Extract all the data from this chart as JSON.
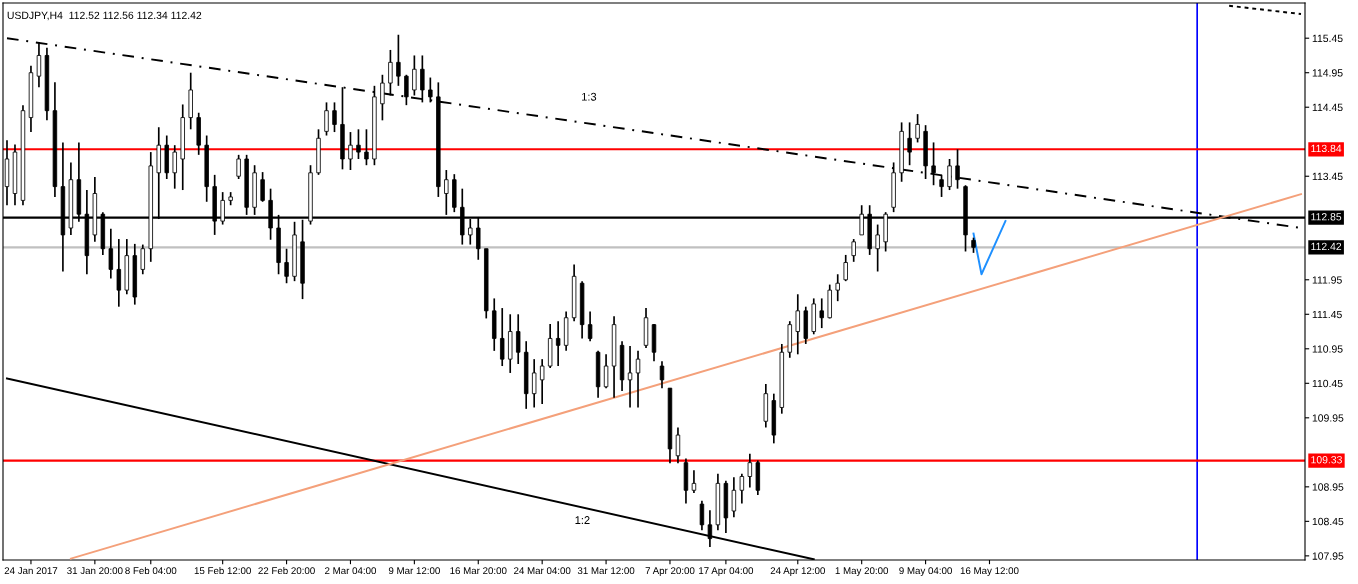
{
  "chart_data": {
    "type": "candlestick",
    "title": "USDJPY,H4  112.52 112.56 112.34 112.42",
    "categories": [
      null,
      null,
      null,
      "24 Jan 2017",
      null,
      null,
      null,
      null,
      null,
      null,
      null,
      "31 Jan 20:00",
      null,
      null,
      null,
      null,
      null,
      null,
      "8 Feb 04:00",
      null,
      null,
      null,
      null,
      null,
      null,
      null,
      null,
      "15 Feb 12:00",
      null,
      null,
      null,
      null,
      null,
      null,
      null,
      "22 Feb 20:00",
      null,
      null,
      null,
      null,
      null,
      null,
      null,
      "2 Mar 04:00",
      null,
      null,
      null,
      null,
      null,
      null,
      null,
      "9 Mar 12:00",
      null,
      null,
      null,
      null,
      null,
      null,
      null,
      "16 Mar 20:00",
      null,
      null,
      null,
      null,
      null,
      null,
      null,
      "24 Mar 04:00",
      null,
      null,
      null,
      null,
      null,
      null,
      null,
      "31 Mar 12:00",
      null,
      null,
      null,
      null,
      null,
      null,
      null,
      "7 Apr 20:00",
      null,
      null,
      null,
      null,
      null,
      null,
      "17 Apr 04:00",
      null,
      null,
      null,
      null,
      null,
      null,
      null,
      null,
      "24 Apr 12:00",
      null,
      null,
      null,
      null,
      null,
      null,
      null,
      "1 May 20:00",
      null,
      null,
      null,
      null,
      null,
      null,
      null,
      "9 May 04:00",
      null,
      null,
      null,
      null,
      null,
      null,
      null,
      "16 May 12:00",
      null,
      null,
      null,
      null,
      null,
      null,
      null,
      null,
      null,
      null,
      null,
      null,
      null,
      null,
      null,
      null,
      null,
      null,
      null,
      null,
      null,
      null,
      null,
      null,
      null,
      null,
      null,
      null,
      null,
      null,
      null,
      null,
      null,
      null,
      null,
      null,
      null,
      null,
      null
    ],
    "ohlc": [
      [
        113.3,
        113.97,
        113.03,
        113.7
      ],
      [
        113.2,
        113.91,
        113.03,
        113.8
      ],
      [
        113.1,
        114.48,
        113.03,
        114.4
      ],
      [
        114.3,
        115.05,
        114.09,
        114.95
      ],
      [
        114.9,
        115.38,
        114.74,
        115.2
      ],
      [
        115.2,
        115.31,
        114.26,
        114.4
      ],
      [
        114.4,
        114.81,
        113.15,
        113.3
      ],
      [
        113.3,
        113.94,
        112.07,
        112.6
      ],
      [
        112.7,
        113.65,
        112.6,
        113.4
      ],
      [
        113.4,
        113.94,
        112.79,
        112.9
      ],
      [
        112.9,
        113.25,
        112.03,
        112.3
      ],
      [
        112.6,
        113.44,
        112.5,
        113.2
      ],
      [
        112.9,
        112.93,
        112.31,
        112.4
      ],
      [
        112.4,
        112.69,
        111.97,
        112.1
      ],
      [
        112.1,
        112.54,
        111.56,
        111.8
      ],
      [
        111.8,
        112.54,
        111.74,
        112.3
      ],
      [
        112.3,
        112.47,
        111.59,
        111.7
      ],
      [
        112.1,
        112.46,
        112.03,
        112.4
      ],
      [
        112.4,
        113.8,
        112.21,
        113.6
      ],
      [
        113.5,
        114.16,
        112.83,
        113.9
      ],
      [
        113.9,
        114.04,
        113.41,
        113.5
      ],
      [
        113.5,
        113.9,
        113.27,
        113.8
      ],
      [
        113.7,
        114.49,
        113.25,
        114.3
      ],
      [
        114.3,
        114.95,
        114.13,
        114.7
      ],
      [
        114.3,
        114.37,
        113.76,
        113.9
      ],
      [
        113.9,
        114.04,
        113.08,
        113.3
      ],
      [
        113.3,
        113.47,
        112.6,
        112.8
      ],
      [
        112.8,
        113.22,
        112.75,
        113.1
      ],
      [
        113.1,
        113.22,
        113.03,
        113.15
      ],
      [
        113.45,
        113.76,
        113.41,
        113.7
      ],
      [
        113.7,
        113.76,
        112.89,
        113.0
      ],
      [
        113.0,
        113.61,
        112.89,
        113.5
      ],
      [
        113.4,
        113.51,
        113.08,
        113.1
      ],
      [
        113.1,
        113.27,
        112.53,
        112.7
      ],
      [
        112.7,
        112.89,
        112.03,
        112.2
      ],
      [
        112.2,
        112.4,
        111.9,
        112.0
      ],
      [
        112.0,
        112.79,
        111.93,
        112.6
      ],
      [
        112.5,
        112.82,
        111.67,
        111.9
      ],
      [
        112.8,
        113.61,
        112.75,
        113.5
      ],
      [
        113.5,
        114.13,
        113.47,
        114.0
      ],
      [
        114.1,
        114.52,
        114.04,
        114.4
      ],
      [
        114.4,
        114.52,
        114.09,
        114.2
      ],
      [
        114.2,
        114.74,
        113.55,
        113.7
      ],
      [
        113.7,
        114.09,
        113.54,
        113.9
      ],
      [
        113.9,
        114.13,
        113.7,
        113.8
      ],
      [
        113.8,
        114.13,
        113.61,
        113.7
      ],
      [
        113.7,
        114.76,
        113.61,
        114.6
      ],
      [
        114.5,
        114.92,
        114.26,
        114.8
      ],
      [
        114.8,
        115.28,
        114.62,
        115.1
      ],
      [
        115.1,
        115.5,
        114.76,
        114.9
      ],
      [
        114.9,
        114.92,
        114.48,
        114.6
      ],
      [
        114.7,
        115.2,
        114.62,
        115.0
      ],
      [
        115.0,
        115.2,
        114.52,
        114.7
      ],
      [
        114.7,
        114.88,
        114.52,
        114.6
      ],
      [
        114.6,
        114.81,
        113.15,
        113.3
      ],
      [
        113.2,
        113.54,
        112.89,
        113.4
      ],
      [
        113.4,
        113.48,
        112.93,
        113.0
      ],
      [
        113.0,
        113.27,
        112.46,
        112.6
      ],
      [
        112.6,
        112.83,
        112.46,
        112.7
      ],
      [
        112.7,
        112.86,
        112.24,
        112.4
      ],
      [
        112.4,
        112.4,
        111.39,
        111.5
      ],
      [
        111.5,
        111.68,
        110.92,
        111.1
      ],
      [
        111.1,
        111.54,
        110.7,
        110.8
      ],
      [
        110.8,
        111.45,
        110.6,
        111.2
      ],
      [
        111.2,
        111.45,
        110.73,
        110.9
      ],
      [
        110.9,
        111.06,
        110.08,
        110.3
      ],
      [
        110.3,
        110.8,
        110.1,
        110.6
      ],
      [
        110.5,
        110.8,
        110.15,
        110.7
      ],
      [
        110.7,
        111.31,
        110.67,
        111.1
      ],
      [
        111.1,
        111.35,
        110.7,
        111.0
      ],
      [
        111.0,
        111.49,
        110.92,
        111.4
      ],
      [
        111.4,
        112.17,
        111.35,
        112.0
      ],
      [
        111.9,
        111.93,
        111.1,
        111.3
      ],
      [
        111.3,
        111.49,
        111.06,
        111.1
      ],
      [
        110.9,
        110.92,
        110.24,
        110.4
      ],
      [
        110.4,
        110.87,
        110.38,
        110.7
      ],
      [
        110.7,
        111.42,
        110.24,
        111.3
      ],
      [
        111.0,
        111.06,
        110.34,
        110.5
      ],
      [
        110.5,
        110.99,
        110.1,
        110.6
      ],
      [
        110.6,
        110.92,
        110.1,
        110.8
      ],
      [
        111.0,
        111.54,
        110.96,
        111.4
      ],
      [
        111.3,
        111.31,
        110.77,
        110.9
      ],
      [
        110.7,
        110.77,
        110.38,
        110.5
      ],
      [
        110.38,
        110.38,
        109.29,
        109.5
      ],
      [
        109.4,
        109.81,
        109.29,
        109.7
      ],
      [
        109.3,
        109.36,
        108.71,
        108.9
      ],
      [
        108.9,
        109.19,
        108.86,
        109.0
      ],
      [
        108.7,
        108.75,
        108.32,
        108.4
      ],
      [
        108.4,
        108.61,
        108.08,
        108.2
      ],
      [
        108.4,
        109.14,
        108.32,
        109.0
      ],
      [
        109.0,
        109.04,
        108.28,
        108.5
      ],
      [
        108.6,
        109.09,
        108.51,
        108.9
      ],
      [
        108.9,
        109.14,
        108.71,
        109.1
      ],
      [
        109.1,
        109.43,
        108.94,
        109.3
      ],
      [
        109.3,
        109.33,
        108.83,
        108.9
      ],
      [
        109.9,
        110.44,
        109.81,
        110.3
      ],
      [
        110.2,
        110.3,
        109.58,
        109.7
      ],
      [
        110.1,
        111.02,
        110.01,
        110.9
      ],
      [
        110.9,
        111.35,
        110.82,
        111.3
      ],
      [
        111.2,
        111.74,
        110.87,
        111.5
      ],
      [
        111.5,
        111.56,
        111.02,
        111.1
      ],
      [
        111.2,
        111.68,
        111.16,
        111.6
      ],
      [
        111.5,
        111.68,
        111.25,
        111.4
      ],
      [
        111.4,
        111.88,
        111.39,
        111.8
      ],
      [
        111.8,
        112.03,
        111.64,
        111.9
      ],
      [
        111.95,
        112.31,
        111.93,
        112.2
      ],
      [
        112.3,
        112.54,
        112.21,
        112.5
      ],
      [
        112.6,
        113.03,
        112.6,
        112.9
      ],
      [
        112.9,
        113.03,
        112.31,
        112.4
      ],
      [
        112.4,
        112.75,
        112.07,
        112.6
      ],
      [
        112.5,
        112.93,
        112.36,
        112.9
      ],
      [
        113.0,
        113.65,
        112.93,
        113.5
      ],
      [
        113.5,
        114.23,
        113.37,
        114.1
      ],
      [
        114.0,
        114.23,
        113.61,
        113.8
      ],
      [
        114.0,
        114.35,
        113.94,
        114.2
      ],
      [
        114.1,
        114.19,
        113.41,
        113.6
      ],
      [
        113.6,
        113.94,
        113.32,
        113.5
      ],
      [
        113.4,
        113.47,
        113.15,
        113.3
      ],
      [
        113.3,
        113.7,
        113.25,
        113.6
      ],
      [
        113.6,
        113.84,
        113.27,
        113.4
      ],
      [
        113.3,
        113.32,
        112.36,
        112.6
      ],
      [
        112.52,
        112.56,
        112.34,
        112.42
      ],
      null,
      null,
      null,
      null,
      null,
      null,
      null,
      null,
      null,
      null,
      null,
      null,
      null,
      null,
      null,
      null,
      null,
      null,
      null,
      null,
      null,
      null,
      null,
      null,
      null,
      null,
      null,
      null,
      null,
      null,
      null,
      null,
      null,
      null,
      null,
      null,
      null,
      null,
      null,
      null,
      null
    ],
    "color": "#000000",
    "series": [
      {
        "type": "line",
        "values": [
          115.45,
          null,
          null,
          null,
          null,
          null,
          null,
          null,
          null,
          null,
          null,
          null,
          null,
          null,
          null,
          null,
          null,
          null,
          null,
          null,
          null,
          null,
          null,
          null,
          null,
          null,
          null,
          null,
          null,
          null,
          null,
          null,
          null,
          null,
          null,
          null,
          null,
          null,
          null,
          null,
          null,
          null,
          null,
          null,
          null,
          null,
          null,
          null,
          null,
          null,
          null,
          null,
          null,
          null,
          null,
          null,
          null,
          null,
          null,
          null,
          null,
          null,
          null,
          null,
          null,
          null,
          null,
          null,
          null,
          null,
          null,
          null,
          null,
          null,
          null,
          null,
          null,
          null,
          null,
          null,
          null,
          null,
          null,
          null,
          null,
          null,
          null,
          null,
          null,
          null,
          null,
          null,
          null,
          null,
          null,
          null,
          null,
          null,
          null,
          null,
          null,
          null,
          null,
          null,
          null,
          null,
          null,
          null,
          null,
          null,
          null,
          null,
          null,
          null,
          null,
          null,
          null,
          null,
          null,
          null,
          null,
          null,
          null,
          null,
          null,
          null,
          null,
          null,
          null,
          null,
          null,
          null,
          null,
          null,
          null,
          null,
          null,
          null,
          null,
          null,
          null,
          null,
          null,
          null,
          null,
          null,
          null,
          null,
          null,
          null,
          null,
          null,
          null,
          null,
          null,
          null,
          null,
          null,
          null,
          null,
          null,
          null,
          112.7
        ],
        "color": "#000000",
        "line_style": "dashed"
      },
      {
        "type": "line",
        "values": [
          null,
          null,
          null,
          null,
          null,
          null,
          null,
          null,
          null,
          null,
          null,
          null,
          null,
          null,
          null,
          null,
          null,
          null,
          null,
          null,
          null,
          null,
          null,
          null,
          null,
          null,
          null,
          null,
          null,
          null,
          null,
          null,
          null,
          null,
          null,
          null,
          null,
          null,
          null,
          null,
          null,
          null,
          null,
          null,
          null,
          null,
          null,
          null,
          null,
          null,
          null,
          null,
          null,
          null,
          null,
          null,
          null,
          null,
          null,
          null,
          null,
          null,
          null,
          null,
          null,
          null,
          null,
          null,
          null,
          null,
          null,
          null,
          null,
          null,
          null,
          null,
          null,
          null,
          null,
          null,
          null,
          null,
          null,
          null,
          null,
          null,
          null,
          null,
          null,
          null,
          null,
          null,
          null,
          null,
          null,
          null,
          null,
          null,
          null,
          null,
          null,
          null,
          null,
          null,
          null,
          null,
          null,
          null,
          null,
          null,
          null,
          null,
          null,
          null,
          null,
          null,
          null,
          null,
          null,
          null,
          null,
          null,
          null,
          null,
          null,
          null,
          null,
          null,
          null,
          null,
          null,
          null,
          null,
          null,
          null,
          null,
          null,
          null,
          null,
          null,
          null,
          null,
          null,
          null,
          null,
          null,
          null,
          null,
          null,
          null,
          null,
          null,
          null,
          115.92,
          null,
          null,
          null,
          null,
          null,
          null,
          null,
          null,
          115.8
        ],
        "color": "#000000",
        "line_style": "dotted"
      },
      {
        "type": "line",
        "values": [
          110.52,
          null,
          null,
          null,
          null,
          null,
          null,
          null,
          null,
          null,
          null,
          null,
          null,
          null,
          null,
          null,
          null,
          null,
          null,
          null,
          null,
          null,
          null,
          null,
          null,
          null,
          null,
          null,
          null,
          null,
          null,
          null,
          null,
          null,
          null,
          null,
          null,
          null,
          null,
          null,
          null,
          null,
          null,
          null,
          null,
          null,
          null,
          null,
          null,
          null,
          null,
          null,
          null,
          null,
          null,
          null,
          null,
          null,
          null,
          null,
          null,
          null,
          null,
          null,
          null,
          null,
          null,
          null,
          null,
          null,
          null,
          null,
          null,
          null,
          null,
          null,
          null,
          null,
          null,
          null,
          null,
          null,
          null,
          null,
          null,
          null,
          null,
          null,
          null,
          null,
          null,
          null,
          null,
          null,
          null,
          null,
          null,
          null,
          null,
          null,
          null,
          107.9,
          null,
          null,
          null,
          null,
          null,
          null,
          null,
          null,
          null,
          null,
          null,
          null,
          null,
          null,
          null,
          null,
          null,
          null,
          null,
          null,
          null,
          null,
          null,
          null,
          null,
          null,
          null,
          null,
          null,
          null,
          null,
          null,
          null,
          null,
          null,
          null,
          null,
          null,
          null,
          null,
          null,
          null,
          null,
          null,
          null,
          null,
          null,
          null,
          null,
          null,
          null,
          null,
          null,
          null,
          null,
          null,
          null,
          null,
          null,
          null,
          null
        ],
        "color": "#000000",
        "line_style": "solid"
      },
      {
        "type": "line",
        "values": [
          null,
          null,
          null,
          null,
          null,
          null,
          null,
          null,
          107.91,
          null,
          null,
          null,
          null,
          null,
          null,
          null,
          null,
          null,
          null,
          null,
          null,
          null,
          null,
          null,
          null,
          null,
          null,
          null,
          null,
          null,
          null,
          null,
          null,
          null,
          null,
          null,
          null,
          null,
          null,
          null,
          null,
          null,
          null,
          null,
          null,
          null,
          null,
          null,
          null,
          null,
          null,
          null,
          null,
          null,
          null,
          null,
          null,
          null,
          null,
          null,
          null,
          null,
          null,
          null,
          null,
          null,
          null,
          null,
          null,
          null,
          null,
          null,
          null,
          null,
          null,
          null,
          null,
          null,
          null,
          null,
          null,
          null,
          null,
          null,
          null,
          null,
          null,
          null,
          null,
          null,
          null,
          null,
          null,
          null,
          null,
          null,
          null,
          null,
          null,
          null,
          null,
          null,
          null,
          null,
          null,
          null,
          null,
          null,
          null,
          null,
          null,
          null,
          null,
          null,
          null,
          null,
          null,
          null,
          null,
          null,
          null,
          null,
          null,
          null,
          null,
          null,
          null,
          null,
          null,
          null,
          null,
          null,
          null,
          null,
          null,
          null,
          null,
          null,
          null,
          null,
          null,
          null,
          null,
          null,
          null,
          null,
          null,
          null,
          null,
          null,
          null,
          null,
          null,
          null,
          null,
          null,
          null,
          null,
          null,
          null,
          null,
          null,
          113.19
        ],
        "color": "#f4a07a",
        "line_style": "solid"
      },
      {
        "type": "line",
        "values": [
          null,
          null,
          null,
          null,
          null,
          null,
          null,
          null,
          null,
          null,
          null,
          null,
          null,
          null,
          null,
          null,
          null,
          null,
          null,
          null,
          null,
          null,
          null,
          null,
          null,
          null,
          null,
          null,
          null,
          null,
          null,
          null,
          null,
          null,
          null,
          null,
          null,
          null,
          null,
          null,
          null,
          null,
          null,
          null,
          null,
          null,
          null,
          null,
          null,
          null,
          null,
          null,
          null,
          null,
          null,
          null,
          null,
          null,
          null,
          null,
          null,
          null,
          null,
          null,
          null,
          null,
          null,
          null,
          null,
          null,
          null,
          null,
          null,
          null,
          null,
          null,
          null,
          null,
          null,
          null,
          null,
          null,
          null,
          null,
          null,
          null,
          null,
          null,
          null,
          null,
          null,
          null,
          null,
          null,
          null,
          null,
          null,
          null,
          null,
          null,
          null,
          null,
          null,
          null,
          null,
          null,
          null,
          null,
          null,
          null,
          null,
          null,
          null,
          null,
          null,
          null,
          null,
          null,
          null,
          null,
          null,
          112.62,
          112.03,
          null,
          null,
          112.8,
          null,
          null,
          null,
          null,
          null,
          null,
          null,
          null,
          null,
          null,
          null,
          null,
          null,
          null,
          null,
          null,
          null,
          null,
          null,
          null,
          null,
          null,
          null,
          null,
          null,
          null,
          null,
          null,
          null,
          null,
          null,
          null,
          null,
          null,
          null,
          null,
          null
        ],
        "color": "#1e90ff",
        "line_style": "solid"
      }
    ],
    "ylim": [
      107.89,
      115.96
    ],
    "yticks": [
      {
        "value": 115.45,
        "label": "115.45"
      },
      {
        "value": 114.95,
        "label": "114.95"
      },
      {
        "value": 114.45,
        "label": "114.45"
      },
      {
        "value": 113.45,
        "label": "113.45"
      },
      {
        "value": 111.95,
        "label": "111.95"
      },
      {
        "value": 111.45,
        "label": "111.45"
      },
      {
        "value": 110.95,
        "label": "110.95"
      },
      {
        "value": 110.45,
        "label": "110.45"
      },
      {
        "value": 109.95,
        "label": "109.95"
      },
      {
        "value": 108.95,
        "label": "108.95"
      },
      {
        "value": 108.45,
        "label": "108.45"
      },
      {
        "value": 107.95,
        "label": "107.95"
      }
    ],
    "ref_lines": [
      {
        "axis": "y",
        "value": 113.84,
        "label": "113.84",
        "color": "#ff0000"
      },
      {
        "axis": "y",
        "value": 112.85,
        "label": "112.85",
        "color": "#000000"
      },
      {
        "axis": "y",
        "value": 112.42,
        "label": "112.42",
        "color": "#c0c0c0"
      },
      {
        "axis": "y",
        "value": 109.33,
        "label": "109.33",
        "color": "#ff0000"
      }
    ],
    "annotations": [
      "1:3",
      "1:2"
    ],
    "grid": false,
    "legend": false
  }
}
